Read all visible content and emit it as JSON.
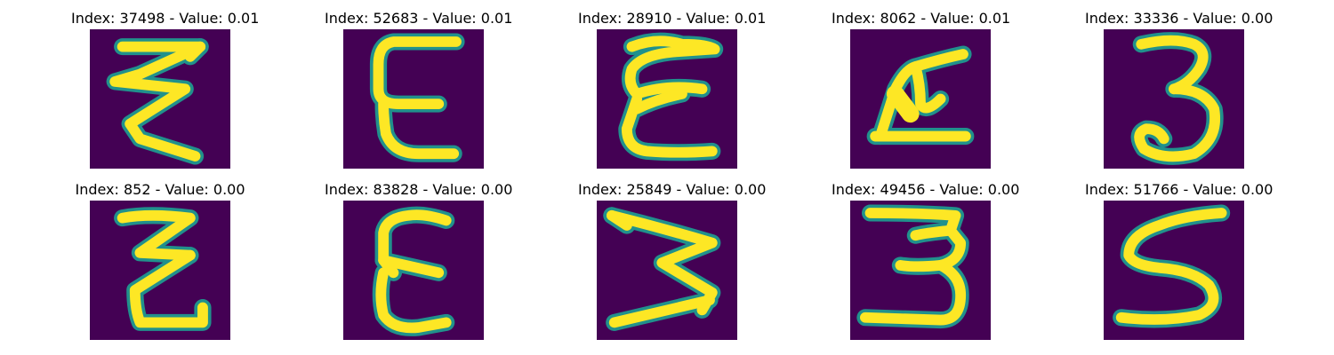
{
  "colors": {
    "background": "#440154",
    "stroke": "#fde725",
    "edge": "#21918c"
  },
  "panels": [
    {
      "title": "Index: 37498 - Value: 0.01",
      "glyph": "zigzag-z"
    },
    {
      "title": "Index: 52683 - Value: 0.01",
      "glyph": "epsilon"
    },
    {
      "title": "Index: 28910 - Value: 0.01",
      "glyph": "epsilon-loopy"
    },
    {
      "title": "Index: 8062 - Value: 0.01",
      "glyph": "blob-a"
    },
    {
      "title": "Index: 33336 - Value: 0.00",
      "glyph": "three"
    },
    {
      "title": "Index: 852 - Value: 0.00",
      "glyph": "zigzag-z-narrow"
    },
    {
      "title": "Index: 83828 - Value: 0.00",
      "glyph": "epsilon-bold"
    },
    {
      "title": "Index: 25849 - Value: 0.00",
      "glyph": "sideways-w"
    },
    {
      "title": "Index: 49456 - Value: 0.00",
      "glyph": "three-flat"
    },
    {
      "title": "Index: 51766 - Value: 0.00",
      "glyph": "five"
    }
  ]
}
